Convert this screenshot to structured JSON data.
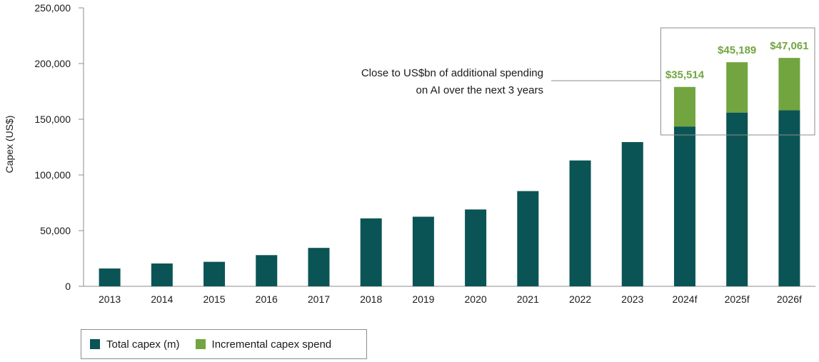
{
  "chart_data": {
    "type": "bar",
    "stacked": true,
    "categories": [
      "2013",
      "2014",
      "2015",
      "2016",
      "2017",
      "2018",
      "2019",
      "2020",
      "2021",
      "2022",
      "2023",
      "2024f",
      "2025f",
      "2026f"
    ],
    "series": [
      {
        "name": "Total capex (m)",
        "color": "#0b5455",
        "values": [
          16000,
          20500,
          22000,
          28000,
          34500,
          61000,
          62500,
          69000,
          85500,
          113000,
          129500,
          143500,
          156000,
          158000
        ]
      },
      {
        "name": "Incremental capex spend",
        "color": "#72a540",
        "values": [
          0,
          0,
          0,
          0,
          0,
          0,
          0,
          0,
          0,
          0,
          0,
          35514,
          45189,
          47061
        ]
      }
    ],
    "data_labels": [
      {
        "category": "2024f",
        "text": "$35,514"
      },
      {
        "category": "2025f",
        "text": "$45,189"
      },
      {
        "category": "2026f",
        "text": "$47,061"
      }
    ],
    "ylabel": "Capex (US$)",
    "ylim": [
      0,
      250000
    ],
    "yticks": [
      0,
      50000,
      100000,
      150000,
      200000,
      250000
    ],
    "ytick_labels": [
      "0",
      "50,000",
      "100,000",
      "150,000",
      "200,000",
      "250,000"
    ],
    "annotation": {
      "lines": [
        "Close to US$bn of additional spending",
        "on AI over the next 3 years"
      ],
      "highlight": [
        "2024f",
        "2026f"
      ]
    },
    "legend_placement": "bottom-left",
    "grid": false
  }
}
